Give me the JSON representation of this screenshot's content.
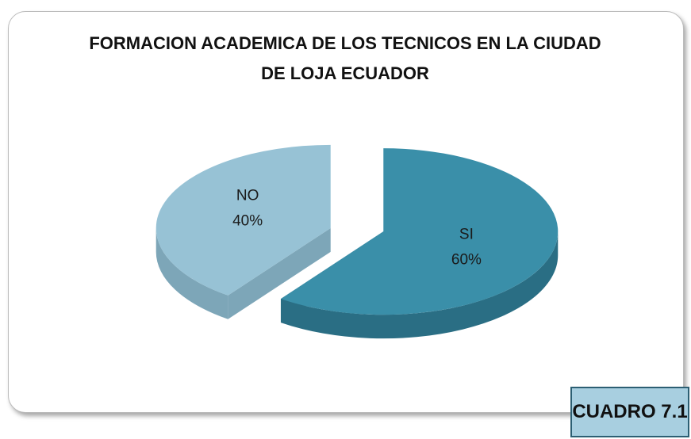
{
  "chart_data": {
    "type": "pie",
    "title": "FORMACION ACADEMICA DE LOS TECNICOS EN LA CIUDAD DE LOJA ECUADOR",
    "categories": [
      "SI",
      "NO"
    ],
    "values": [
      60,
      40
    ],
    "value_labels": [
      "60%",
      "40%"
    ],
    "colors": [
      "#3a8fa9",
      "#97c2d5"
    ],
    "side_colors": [
      "#2a6e84",
      "#7da6b8"
    ]
  },
  "caption": "CUADRO 7.1"
}
